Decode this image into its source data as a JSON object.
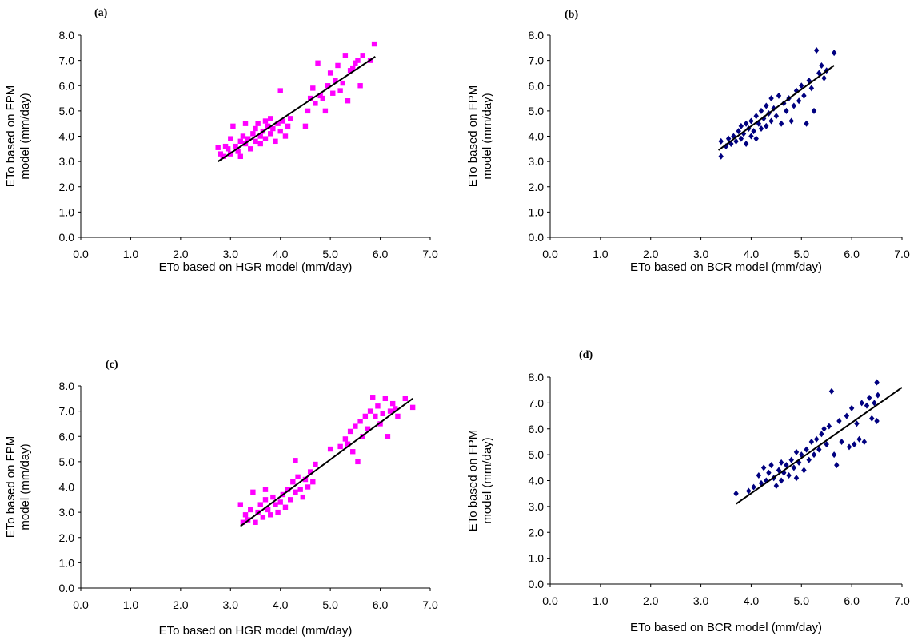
{
  "chart_data": [
    {
      "panel": "(a)",
      "type": "scatter",
      "xlabel": "ETo based on HGR model (mm/day)",
      "ylabel": "ETo based on FPM model (mm/day)",
      "xlim": [
        0,
        7
      ],
      "ylim": [
        0,
        8
      ],
      "xticks": [
        "0.0",
        "1.0",
        "2.0",
        "3.0",
        "4.0",
        "5.0",
        "6.0",
        "7.0"
      ],
      "yticks": [
        "0.0",
        "1.0",
        "2.0",
        "3.0",
        "4.0",
        "5.0",
        "6.0",
        "7.0",
        "8.0"
      ],
      "marker": "square",
      "color": "#ff00ff",
      "trendline": {
        "x": [
          2.75,
          5.9
        ],
        "y": [
          3.0,
          7.15
        ]
      },
      "points": [
        [
          2.75,
          3.55
        ],
        [
          2.8,
          3.3
        ],
        [
          2.85,
          3.2
        ],
        [
          2.9,
          3.6
        ],
        [
          2.95,
          3.5
        ],
        [
          3.0,
          3.3
        ],
        [
          3.0,
          3.9
        ],
        [
          3.05,
          4.4
        ],
        [
          3.1,
          3.6
        ],
        [
          3.15,
          3.4
        ],
        [
          3.2,
          3.2
        ],
        [
          3.2,
          3.8
        ],
        [
          3.25,
          4.0
        ],
        [
          3.3,
          3.7
        ],
        [
          3.3,
          4.5
        ],
        [
          3.35,
          3.9
        ],
        [
          3.4,
          3.5
        ],
        [
          3.45,
          4.1
        ],
        [
          3.5,
          3.8
        ],
        [
          3.5,
          4.3
        ],
        [
          3.55,
          4.5
        ],
        [
          3.6,
          4.0
        ],
        [
          3.6,
          3.7
        ],
        [
          3.65,
          4.2
        ],
        [
          3.7,
          4.6
        ],
        [
          3.7,
          3.9
        ],
        [
          3.75,
          4.4
        ],
        [
          3.8,
          4.1
        ],
        [
          3.8,
          4.7
        ],
        [
          3.85,
          4.3
        ],
        [
          3.9,
          3.8
        ],
        [
          3.95,
          4.5
        ],
        [
          4.0,
          4.2
        ],
        [
          4.0,
          5.8
        ],
        [
          4.05,
          4.6
        ],
        [
          4.1,
          4.0
        ],
        [
          4.15,
          4.4
        ],
        [
          4.2,
          4.7
        ],
        [
          4.5,
          4.4
        ],
        [
          4.55,
          5.0
        ],
        [
          4.6,
          5.5
        ],
        [
          4.65,
          5.9
        ],
        [
          4.7,
          5.3
        ],
        [
          4.75,
          6.9
        ],
        [
          4.8,
          5.6
        ],
        [
          4.85,
          5.5
        ],
        [
          4.9,
          5.0
        ],
        [
          4.95,
          6.0
        ],
        [
          5.0,
          6.5
        ],
        [
          5.05,
          5.7
        ],
        [
          5.1,
          6.2
        ],
        [
          5.15,
          6.8
        ],
        [
          5.2,
          5.8
        ],
        [
          5.25,
          6.1
        ],
        [
          5.3,
          7.2
        ],
        [
          5.35,
          5.4
        ],
        [
          5.4,
          6.6
        ],
        [
          5.45,
          6.7
        ],
        [
          5.5,
          6.9
        ],
        [
          5.55,
          7.0
        ],
        [
          5.6,
          6.0
        ],
        [
          5.65,
          7.2
        ],
        [
          5.8,
          7.0
        ],
        [
          5.88,
          7.65
        ]
      ]
    },
    {
      "panel": "(b)",
      "type": "scatter",
      "xlabel": "ETo based on BCR model (mm/day)",
      "ylabel": "ETo based on FPM model (mm/day)",
      "xlim": [
        0,
        7
      ],
      "ylim": [
        0,
        8
      ],
      "xticks": [
        "0.0",
        "1.0",
        "2.0",
        "3.0",
        "4.0",
        "5.0",
        "6.0",
        "7.0"
      ],
      "yticks": [
        "0.0",
        "1.0",
        "2.0",
        "3.0",
        "4.0",
        "5.0",
        "6.0",
        "7.0",
        "8.0"
      ],
      "marker": "diamond",
      "color": "#000080",
      "trendline": {
        "x": [
          3.35,
          5.65
        ],
        "y": [
          3.45,
          6.8
        ]
      },
      "points": [
        [
          3.4,
          3.2
        ],
        [
          3.4,
          3.8
        ],
        [
          3.5,
          3.6
        ],
        [
          3.55,
          3.9
        ],
        [
          3.6,
          3.7
        ],
        [
          3.65,
          4.0
        ],
        [
          3.7,
          3.8
        ],
        [
          3.75,
          4.2
        ],
        [
          3.8,
          3.9
        ],
        [
          3.8,
          4.4
        ],
        [
          3.85,
          4.1
        ],
        [
          3.9,
          3.7
        ],
        [
          3.9,
          4.5
        ],
        [
          3.95,
          4.3
        ],
        [
          4.0,
          4.0
        ],
        [
          4.0,
          4.6
        ],
        [
          4.05,
          4.2
        ],
        [
          4.1,
          4.8
        ],
        [
          4.1,
          3.9
        ],
        [
          4.15,
          4.5
        ],
        [
          4.2,
          4.3
        ],
        [
          4.2,
          5.0
        ],
        [
          4.25,
          4.7
        ],
        [
          4.3,
          5.2
        ],
        [
          4.3,
          4.4
        ],
        [
          4.35,
          4.9
        ],
        [
          4.4,
          5.5
        ],
        [
          4.4,
          4.6
        ],
        [
          4.45,
          5.1
        ],
        [
          4.5,
          4.8
        ],
        [
          4.55,
          5.6
        ],
        [
          4.6,
          4.5
        ],
        [
          4.65,
          5.3
        ],
        [
          4.7,
          5.0
        ],
        [
          4.75,
          5.5
        ],
        [
          4.8,
          4.6
        ],
        [
          4.85,
          5.2
        ],
        [
          4.9,
          5.8
        ],
        [
          4.95,
          5.4
        ],
        [
          5.0,
          6.0
        ],
        [
          5.05,
          5.6
        ],
        [
          5.1,
          4.5
        ],
        [
          5.15,
          6.2
        ],
        [
          5.2,
          5.9
        ],
        [
          5.25,
          5.0
        ],
        [
          5.3,
          7.4
        ],
        [
          5.35,
          6.5
        ],
        [
          5.4,
          6.8
        ],
        [
          5.45,
          6.3
        ],
        [
          5.5,
          6.6
        ],
        [
          5.65,
          7.3
        ]
      ]
    },
    {
      "panel": "(c)",
      "type": "scatter",
      "xlabel": "ETo based on HGR model (mm/day)",
      "ylabel": "ETo based on FPM model (mm/day)",
      "xlim": [
        0,
        7
      ],
      "ylim": [
        0,
        8
      ],
      "xticks": [
        "0.0",
        "1.0",
        "2.0",
        "3.0",
        "4.0",
        "5.0",
        "6.0",
        "7.0"
      ],
      "yticks": [
        "0.0",
        "1.0",
        "2.0",
        "3.0",
        "4.0",
        "5.0",
        "6.0",
        "7.0",
        "8.0"
      ],
      "marker": "square",
      "color": "#ff00ff",
      "trendline": {
        "x": [
          3.2,
          6.65
        ],
        "y": [
          2.45,
          7.5
        ]
      },
      "points": [
        [
          3.2,
          3.3
        ],
        [
          3.25,
          2.6
        ],
        [
          3.3,
          2.9
        ],
        [
          3.35,
          2.7
        ],
        [
          3.4,
          3.1
        ],
        [
          3.45,
          3.8
        ],
        [
          3.5,
          2.6
        ],
        [
          3.55,
          3.0
        ],
        [
          3.6,
          3.3
        ],
        [
          3.65,
          2.8
        ],
        [
          3.7,
          3.5
        ],
        [
          3.7,
          3.9
        ],
        [
          3.75,
          3.1
        ],
        [
          3.8,
          2.9
        ],
        [
          3.85,
          3.6
        ],
        [
          3.9,
          3.3
        ],
        [
          3.95,
          3.0
        ],
        [
          4.0,
          3.4
        ],
        [
          4.05,
          3.7
        ],
        [
          4.1,
          3.2
        ],
        [
          4.15,
          3.9
        ],
        [
          4.2,
          3.5
        ],
        [
          4.25,
          4.2
        ],
        [
          4.3,
          3.8
        ],
        [
          4.3,
          5.05
        ],
        [
          4.35,
          4.4
        ],
        [
          4.4,
          3.9
        ],
        [
          4.45,
          3.6
        ],
        [
          4.5,
          4.3
        ],
        [
          4.55,
          4.0
        ],
        [
          4.6,
          4.6
        ],
        [
          4.65,
          4.2
        ],
        [
          4.7,
          4.9
        ],
        [
          5.0,
          5.5
        ],
        [
          5.2,
          5.6
        ],
        [
          5.3,
          5.9
        ],
        [
          5.35,
          5.7
        ],
        [
          5.4,
          6.2
        ],
        [
          5.45,
          5.4
        ],
        [
          5.5,
          6.4
        ],
        [
          5.55,
          5.0
        ],
        [
          5.6,
          6.6
        ],
        [
          5.65,
          6.0
        ],
        [
          5.7,
          6.8
        ],
        [
          5.75,
          6.3
        ],
        [
          5.8,
          7.0
        ],
        [
          5.85,
          7.55
        ],
        [
          5.9,
          6.8
        ],
        [
          5.95,
          7.2
        ],
        [
          6.0,
          6.5
        ],
        [
          6.05,
          6.9
        ],
        [
          6.1,
          7.5
        ],
        [
          6.15,
          6.0
        ],
        [
          6.2,
          7.0
        ],
        [
          6.25,
          7.3
        ],
        [
          6.3,
          7.1
        ],
        [
          6.35,
          6.8
        ],
        [
          6.5,
          7.5
        ],
        [
          6.65,
          7.15
        ]
      ]
    },
    {
      "panel": "(d)",
      "type": "scatter",
      "xlabel": "ETo based on BCR model (mm/day)",
      "ylabel": "ETo based on FPM model (mm/day)",
      "xlim": [
        0,
        7
      ],
      "ylim": [
        0,
        8
      ],
      "xticks": [
        "0.0",
        "1.0",
        "2.0",
        "3.0",
        "4.0",
        "5.0",
        "6.0",
        "7.0"
      ],
      "yticks": [
        "0.0",
        "1.0",
        "2.0",
        "3.0",
        "4.0",
        "5.0",
        "6.0",
        "7.0",
        "8.0"
      ],
      "marker": "diamond",
      "color": "#000080",
      "trendline": {
        "x": [
          3.7,
          7.0
        ],
        "y": [
          3.1,
          7.6
        ]
      },
      "points": [
        [
          3.7,
          3.5
        ],
        [
          3.95,
          3.6
        ],
        [
          4.05,
          3.75
        ],
        [
          4.15,
          4.2
        ],
        [
          4.2,
          3.9
        ],
        [
          4.25,
          4.5
        ],
        [
          4.3,
          4.0
        ],
        [
          4.35,
          4.3
        ],
        [
          4.4,
          4.6
        ],
        [
          4.45,
          4.1
        ],
        [
          4.5,
          3.8
        ],
        [
          4.55,
          4.4
        ],
        [
          4.6,
          4.7
        ],
        [
          4.6,
          4.0
        ],
        [
          4.65,
          4.3
        ],
        [
          4.7,
          4.6
        ],
        [
          4.75,
          4.2
        ],
        [
          4.8,
          4.8
        ],
        [
          4.85,
          4.5
        ],
        [
          4.9,
          5.1
        ],
        [
          4.9,
          4.1
        ],
        [
          4.95,
          4.7
        ],
        [
          5.0,
          5.0
        ],
        [
          5.05,
          4.4
        ],
        [
          5.1,
          5.2
        ],
        [
          5.15,
          4.8
        ],
        [
          5.2,
          5.5
        ],
        [
          5.25,
          5.0
        ],
        [
          5.3,
          5.6
        ],
        [
          5.35,
          5.2
        ],
        [
          5.4,
          5.8
        ],
        [
          5.45,
          6.0
        ],
        [
          5.5,
          5.4
        ],
        [
          5.55,
          6.1
        ],
        [
          5.6,
          7.45
        ],
        [
          5.65,
          5.0
        ],
        [
          5.7,
          4.6
        ],
        [
          5.75,
          6.3
        ],
        [
          5.8,
          5.5
        ],
        [
          5.9,
          6.5
        ],
        [
          5.95,
          5.3
        ],
        [
          6.0,
          6.8
        ],
        [
          6.05,
          5.4
        ],
        [
          6.1,
          6.2
        ],
        [
          6.15,
          5.6
        ],
        [
          6.2,
          7.0
        ],
        [
          6.25,
          5.5
        ],
        [
          6.3,
          6.9
        ],
        [
          6.35,
          7.2
        ],
        [
          6.4,
          6.4
        ],
        [
          6.45,
          7.0
        ],
        [
          6.5,
          7.8
        ],
        [
          6.5,
          6.3
        ],
        [
          6.52,
          7.3
        ]
      ]
    }
  ]
}
